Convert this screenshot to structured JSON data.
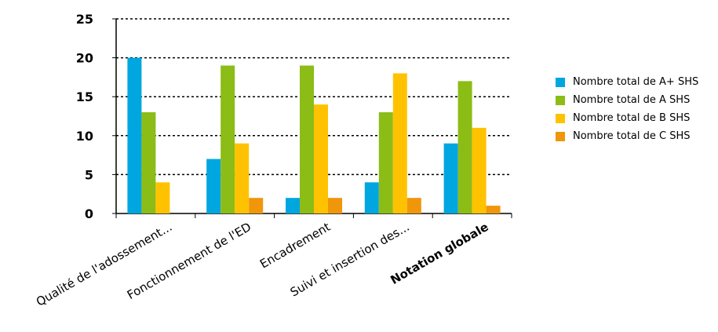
{
  "chart_data": {
    "type": "bar",
    "categories": [
      "Qualité de l'adossement...",
      "Fonctionnement de l'ED",
      "Encadrement",
      "Suivi et insertion des...",
      "Notation globale"
    ],
    "bold_categories": [
      "Notation globale"
    ],
    "series": [
      {
        "name": "Nombre total de A+ SHS",
        "color": "#00a6e0",
        "values": [
          20,
          7,
          2,
          4,
          9
        ]
      },
      {
        "name": "Nombre total de A SHS",
        "color": "#8cbc16",
        "values": [
          13,
          19,
          19,
          13,
          17
        ]
      },
      {
        "name": "Nombre total de B SHS",
        "color": "#ffc200",
        "values": [
          4,
          9,
          14,
          18,
          11
        ]
      },
      {
        "name": "Nombre total de C SHS",
        "color": "#f0960a",
        "values": [
          0,
          2,
          2,
          2,
          1
        ]
      }
    ],
    "yticks": [
      "0",
      "5",
      "10",
      "15",
      "20",
      "25"
    ],
    "ylim": [
      0,
      25
    ],
    "grid": "dashed horizontal",
    "legend_position": "right"
  }
}
